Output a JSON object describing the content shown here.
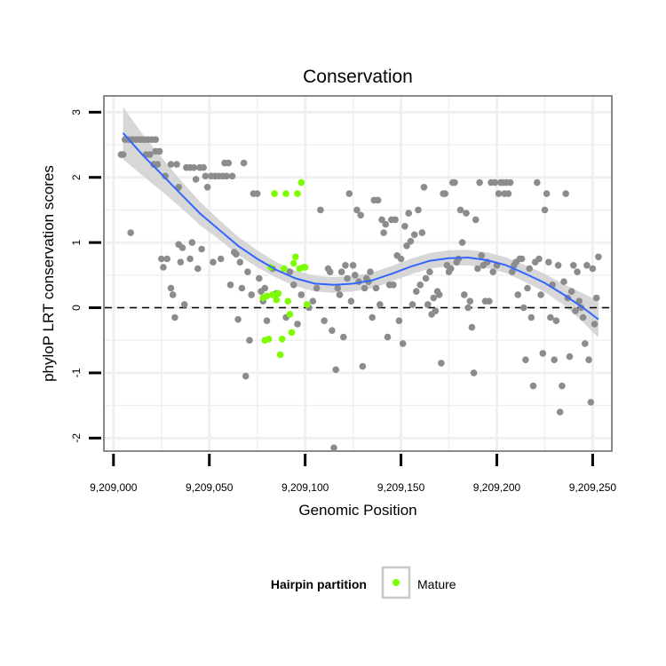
{
  "chart_data": {
    "type": "scatter",
    "title": "Conservation",
    "xlabel": "Genomic Position",
    "ylabel": "phyloP LRT conservation scores",
    "xlim": [
      9208995,
      9209260
    ],
    "ylim": [
      -2.2,
      3.25
    ],
    "x_ticks": [
      9209000,
      9209050,
      9209100,
      9209150,
      9209200,
      9209250
    ],
    "x_tick_labels": [
      "9,209,000",
      "9,209,050",
      "9,209,100",
      "9,209,150",
      "9,209,200",
      "9,209,250"
    ],
    "y_ticks": [
      -2,
      -1,
      0,
      1,
      2,
      3
    ],
    "y_tick_labels": [
      "-2",
      "-1",
      "0",
      "1",
      "2",
      "3"
    ],
    "grid": true,
    "reference_line": {
      "y": 0,
      "style": "dashed"
    },
    "colors": {
      "other": "#8c8c8c",
      "mature": "#7cfc00",
      "smooth_line": "#3366ff",
      "smooth_band": "#d0d0d0",
      "panel_border": "#8a8a8a",
      "grid": "#f0f0f0"
    },
    "legend": {
      "title": "Hairpin partition",
      "entries": [
        {
          "label": "Mature",
          "color": "#7cfc00"
        }
      ],
      "placement": "bottom"
    },
    "series": [
      {
        "group": "other",
        "points": [
          [
            9209004,
            2.35
          ],
          [
            9209005,
            2.35
          ],
          [
            9209006,
            2.58
          ],
          [
            9209008,
            2.58
          ],
          [
            9209010,
            2.58
          ],
          [
            9209012,
            2.58
          ],
          [
            9209014,
            2.58
          ],
          [
            9209016,
            2.58
          ],
          [
            9209018,
            2.58
          ],
          [
            9209020,
            2.58
          ],
          [
            9209022,
            2.58
          ],
          [
            9209009,
            1.15
          ],
          [
            9209017,
            2.35
          ],
          [
            9209019,
            2.35
          ],
          [
            9209022,
            2.4
          ],
          [
            9209024,
            2.4
          ],
          [
            9209023,
            2.2
          ],
          [
            9209021,
            2.2
          ],
          [
            9209025,
            0.75
          ],
          [
            9209026,
            0.62
          ],
          [
            9209027,
            2.02
          ],
          [
            9209028,
            0.75
          ],
          [
            9209030,
            0.3
          ],
          [
            9209030,
            2.2
          ],
          [
            9209031,
            0.2
          ],
          [
            9209032,
            -0.15
          ],
          [
            9209033,
            2.2
          ],
          [
            9209034,
            0.97
          ],
          [
            9209034,
            1.85
          ],
          [
            9209035,
            0.7
          ],
          [
            9209036,
            0.92
          ],
          [
            9209037,
            0.05
          ],
          [
            9209038,
            2.15
          ],
          [
            9209040,
            0.75
          ],
          [
            9209040,
            2.15
          ],
          [
            9209041,
            1.0
          ],
          [
            9209042,
            2.15
          ],
          [
            9209043,
            1.97
          ],
          [
            9209044,
            0.6
          ],
          [
            9209045,
            2.15
          ],
          [
            9209046,
            0.9
          ],
          [
            9209047,
            2.15
          ],
          [
            9209048,
            2.02
          ],
          [
            9209049,
            1.85
          ],
          [
            9209051,
            2.02
          ],
          [
            9209052,
            0.7
          ],
          [
            9209053,
            2.02
          ],
          [
            9209055,
            2.02
          ],
          [
            9209056,
            0.75
          ],
          [
            9209057,
            2.02
          ],
          [
            9209058,
            2.22
          ],
          [
            9209059,
            2.02
          ],
          [
            9209060,
            2.22
          ],
          [
            9209061,
            0.35
          ],
          [
            9209062,
            2.02
          ],
          [
            9209063,
            0.85
          ],
          [
            9209064,
            0.82
          ],
          [
            9209065,
            -0.18
          ],
          [
            9209066,
            0.7
          ],
          [
            9209067,
            0.3
          ],
          [
            9209068,
            2.22
          ],
          [
            9209069,
            -1.05
          ],
          [
            9209070,
            0.55
          ],
          [
            9209071,
            -0.5
          ],
          [
            9209072,
            0.2
          ],
          [
            9209073,
            1.75
          ],
          [
            9209075,
            1.75
          ],
          [
            9209076,
            0.45
          ],
          [
            9209077,
            0.25
          ],
          [
            9209078,
            0.1
          ],
          [
            9209079,
            0.3
          ],
          [
            9209080,
            -0.2
          ],
          [
            9209083,
            0.6
          ],
          [
            9209085,
            0.22
          ],
          [
            9209090,
            -0.15
          ],
          [
            9209092,
            0.55
          ],
          [
            9209094,
            0.35
          ],
          [
            9209096,
            -0.25
          ],
          [
            9209098,
            0.2
          ],
          [
            9209102,
            0.0
          ],
          [
            9209104,
            0.1
          ],
          [
            9209106,
            0.3
          ],
          [
            9209108,
            1.5
          ],
          [
            9209110,
            -0.2
          ],
          [
            9209112,
            0.6
          ],
          [
            9209113,
            0.55
          ],
          [
            9209114,
            -0.35
          ],
          [
            9209115,
            -2.15
          ],
          [
            9209116,
            -0.95
          ],
          [
            9209117,
            0.3
          ],
          [
            9209118,
            0.2
          ],
          [
            9209119,
            0.55
          ],
          [
            9209120,
            -0.45
          ],
          [
            9209121,
            0.65
          ],
          [
            9209122,
            0.45
          ],
          [
            9209123,
            1.75
          ],
          [
            9209124,
            0.1
          ],
          [
            9209125,
            0.65
          ],
          [
            9209126,
            0.5
          ],
          [
            9209127,
            1.5
          ],
          [
            9209128,
            0.4
          ],
          [
            9209129,
            1.42
          ],
          [
            9209130,
            -0.9
          ],
          [
            9209131,
            0.3
          ],
          [
            9209132,
            0.45
          ],
          [
            9209133,
            0.4
          ],
          [
            9209134,
            0.55
          ],
          [
            9209135,
            -0.15
          ],
          [
            9209136,
            1.65
          ],
          [
            9209137,
            0.3
          ],
          [
            9209138,
            1.65
          ],
          [
            9209139,
            0.05
          ],
          [
            9209140,
            1.35
          ],
          [
            9209141,
            1.15
          ],
          [
            9209142,
            1.28
          ],
          [
            9209143,
            -0.45
          ],
          [
            9209144,
            0.35
          ],
          [
            9209145,
            1.35
          ],
          [
            9209146,
            0.35
          ],
          [
            9209147,
            1.35
          ],
          [
            9209148,
            0.8
          ],
          [
            9209149,
            -0.2
          ],
          [
            9209150,
            0.75
          ],
          [
            9209151,
            -0.55
          ],
          [
            9209152,
            1.25
          ],
          [
            9209153,
            0.95
          ],
          [
            9209154,
            1.45
          ],
          [
            9209155,
            1.02
          ],
          [
            9209156,
            0.05
          ],
          [
            9209157,
            1.12
          ],
          [
            9209158,
            0.25
          ],
          [
            9209159,
            1.5
          ],
          [
            9209160,
            0.35
          ],
          [
            9209161,
            1.15
          ],
          [
            9209162,
            1.85
          ],
          [
            9209163,
            0.45
          ],
          [
            9209164,
            0.05
          ],
          [
            9209165,
            0.55
          ],
          [
            9209166,
            -0.1
          ],
          [
            9209167,
            0.15
          ],
          [
            9209168,
            -0.05
          ],
          [
            9209169,
            0.25
          ],
          [
            9209170,
            0.2
          ],
          [
            9209171,
            -0.85
          ],
          [
            9209172,
            1.75
          ],
          [
            9209173,
            1.75
          ],
          [
            9209174,
            0.65
          ],
          [
            9209175,
            0.55
          ],
          [
            9209176,
            0.6
          ],
          [
            9209177,
            1.92
          ],
          [
            9209178,
            1.92
          ],
          [
            9209179,
            0.7
          ],
          [
            9209180,
            0.75
          ],
          [
            9209181,
            1.5
          ],
          [
            9209182,
            1.0
          ],
          [
            9209183,
            0.2
          ],
          [
            9209184,
            1.45
          ],
          [
            9209185,
            0.0
          ],
          [
            9209186,
            0.1
          ],
          [
            9209187,
            -0.3
          ],
          [
            9209188,
            -1.0
          ],
          [
            9209189,
            1.35
          ],
          [
            9209190,
            0.6
          ],
          [
            9209191,
            1.92
          ],
          [
            9209192,
            0.8
          ],
          [
            9209193,
            0.65
          ],
          [
            9209194,
            0.1
          ],
          [
            9209195,
            0.7
          ],
          [
            9209196,
            0.1
          ],
          [
            9209197,
            1.92
          ],
          [
            9209198,
            0.55
          ],
          [
            9209199,
            1.92
          ],
          [
            9209200,
            0.65
          ],
          [
            9209201,
            1.75
          ],
          [
            9209202,
            1.92
          ],
          [
            9209203,
            1.92
          ],
          [
            9209204,
            1.75
          ],
          [
            9209205,
            1.92
          ],
          [
            9209206,
            1.75
          ],
          [
            9209207,
            1.92
          ],
          [
            9209208,
            0.55
          ],
          [
            9209209,
            0.65
          ],
          [
            9209210,
            0.7
          ],
          [
            9209211,
            0.2
          ],
          [
            9209212,
            0.75
          ],
          [
            9209213,
            0.75
          ],
          [
            9209214,
            0.0
          ],
          [
            9209215,
            -0.8
          ],
          [
            9209216,
            0.3
          ],
          [
            9209217,
            0.6
          ],
          [
            9209218,
            -0.15
          ],
          [
            9209219,
            -1.2
          ],
          [
            9209220,
            0.7
          ],
          [
            9209221,
            1.92
          ],
          [
            9209222,
            0.75
          ],
          [
            9209223,
            0.2
          ],
          [
            9209224,
            -0.7
          ],
          [
            9209225,
            1.5
          ],
          [
            9209226,
            1.75
          ],
          [
            9209227,
            0.7
          ],
          [
            9209228,
            -0.15
          ],
          [
            9209229,
            0.35
          ],
          [
            9209230,
            -0.8
          ],
          [
            9209231,
            -0.2
          ],
          [
            9209232,
            0.65
          ],
          [
            9209233,
            -1.6
          ],
          [
            9209234,
            -1.2
          ],
          [
            9209235,
            0.4
          ],
          [
            9209236,
            1.75
          ],
          [
            9209237,
            0.15
          ],
          [
            9209238,
            -0.75
          ],
          [
            9209239,
            0.25
          ],
          [
            9209240,
            0.65
          ],
          [
            9209241,
            -0.05
          ],
          [
            9209242,
            0.55
          ],
          [
            9209243,
            0.1
          ],
          [
            9209244,
            0.0
          ],
          [
            9209245,
            -0.15
          ],
          [
            9209246,
            -0.55
          ],
          [
            9209247,
            0.65
          ],
          [
            9209248,
            -0.8
          ],
          [
            9209249,
            -1.45
          ],
          [
            9209250,
            0.6
          ],
          [
            9209251,
            -0.25
          ],
          [
            9209252,
            0.15
          ],
          [
            9209253,
            0.78
          ]
        ]
      },
      {
        "group": "mature",
        "name": "Mature",
        "points": [
          [
            9209078,
            0.15
          ],
          [
            9209079,
            -0.5
          ],
          [
            9209080,
            0.18
          ],
          [
            9209081,
            -0.48
          ],
          [
            9209082,
            0.62
          ],
          [
            9209083,
            0.2
          ],
          [
            9209084,
            1.75
          ],
          [
            9209085,
            0.12
          ],
          [
            9209086,
            0.22
          ],
          [
            9209087,
            -0.72
          ],
          [
            9209088,
            -0.48
          ],
          [
            9209089,
            0.6
          ],
          [
            9209090,
            1.75
          ],
          [
            9209091,
            0.1
          ],
          [
            9209092,
            -0.1
          ],
          [
            9209093,
            -0.38
          ],
          [
            9209094,
            0.68
          ],
          [
            9209095,
            0.78
          ],
          [
            9209096,
            1.75
          ],
          [
            9209097,
            0.6
          ],
          [
            9209098,
            1.92
          ],
          [
            9209099,
            0.62
          ],
          [
            9209100,
            0.62
          ],
          [
            9209101,
            0.05
          ]
        ]
      }
    ],
    "smooth": {
      "x": [
        9209005,
        9209015,
        9209025,
        9209035,
        9209045,
        9209055,
        9209065,
        9209075,
        9209085,
        9209095,
        9209105,
        9209115,
        9209125,
        9209135,
        9209145,
        9209155,
        9209165,
        9209175,
        9209185,
        9209195,
        9209205,
        9209215,
        9209225,
        9209235,
        9209245,
        9209253
      ],
      "y": [
        2.68,
        2.35,
        2.05,
        1.75,
        1.45,
        1.2,
        0.95,
        0.75,
        0.58,
        0.45,
        0.37,
        0.35,
        0.37,
        0.42,
        0.52,
        0.63,
        0.72,
        0.76,
        0.77,
        0.73,
        0.65,
        0.52,
        0.38,
        0.2,
        0.0,
        -0.18
      ],
      "se": [
        0.4,
        0.32,
        0.26,
        0.21,
        0.18,
        0.15,
        0.14,
        0.13,
        0.12,
        0.12,
        0.12,
        0.12,
        0.12,
        0.12,
        0.12,
        0.12,
        0.12,
        0.12,
        0.12,
        0.12,
        0.12,
        0.13,
        0.14,
        0.16,
        0.22,
        0.28
      ]
    }
  }
}
